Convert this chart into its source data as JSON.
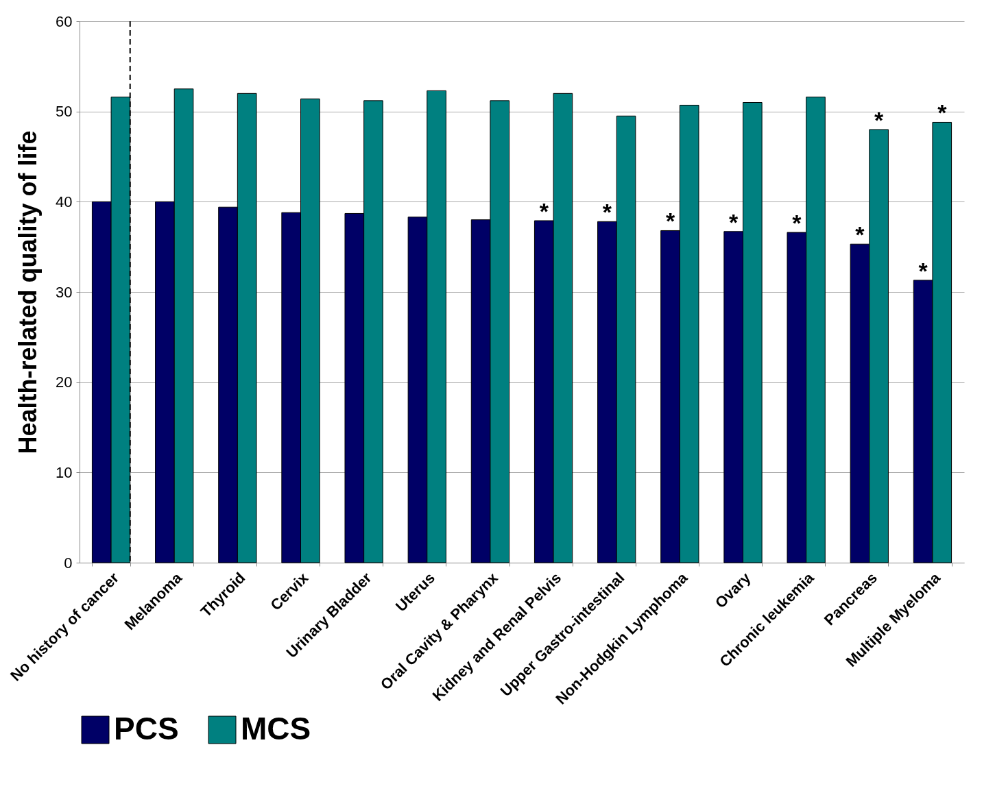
{
  "chart_data": {
    "type": "bar",
    "ylabel": "Health-related quality of life",
    "categories": [
      "No history of cancer",
      "Melanoma",
      "Thyroid",
      "Cervix",
      "Urinary Bladder",
      "Uterus",
      "Oral Cavity & Pharynx",
      "Kidney and Renal Pelvis",
      "Upper Gastro-intestinal",
      "Non-Hodgkin Lymphoma",
      "Ovary",
      "Chronic leukemia",
      "Pancreas",
      "Multiple Myeloma"
    ],
    "series": [
      {
        "name": "PCS",
        "color": "#000066",
        "values": [
          40.0,
          40.0,
          39.4,
          38.8,
          38.7,
          38.3,
          38.0,
          37.9,
          37.8,
          36.8,
          36.7,
          36.6,
          35.3,
          31.3
        ]
      },
      {
        "name": "MCS",
        "color": "#008080",
        "values": [
          51.6,
          52.5,
          52.0,
          51.4,
          51.2,
          52.3,
          51.2,
          52.0,
          49.5,
          50.7,
          51.0,
          51.6,
          48.0,
          48.8
        ]
      }
    ],
    "ylim": [
      0,
      60
    ],
    "yticks": [
      0,
      10,
      20,
      30,
      40,
      50,
      60
    ],
    "grid": "y",
    "legend": "bottom",
    "ref_lines": [
      {
        "axis": "x",
        "value": "No history of cancer",
        "color": "#000000",
        "line_style": "dashed"
      }
    ],
    "annotations": [
      {
        "text": "*",
        "x": "Kidney and Renal Pelvis",
        "y": 37.9
      },
      {
        "text": "*",
        "x": "Upper Gastro-intestinal",
        "y": 37.8
      },
      {
        "text": "*",
        "x": "Non-Hodgkin Lymphoma",
        "y": 36.8
      },
      {
        "text": "*",
        "x": "Ovary",
        "y": 36.7
      },
      {
        "text": "*",
        "x": "Chronic leukemia",
        "y": 36.6
      },
      {
        "text": "*",
        "x": "Pancreas",
        "y": 35.3
      },
      {
        "text": "*",
        "x": "Pancreas",
        "y": 48.0
      },
      {
        "text": "*",
        "x": "Multiple Myeloma",
        "y": 31.3
      },
      {
        "text": "*",
        "x": "Multiple Myeloma",
        "y": 48.8
      }
    ]
  }
}
